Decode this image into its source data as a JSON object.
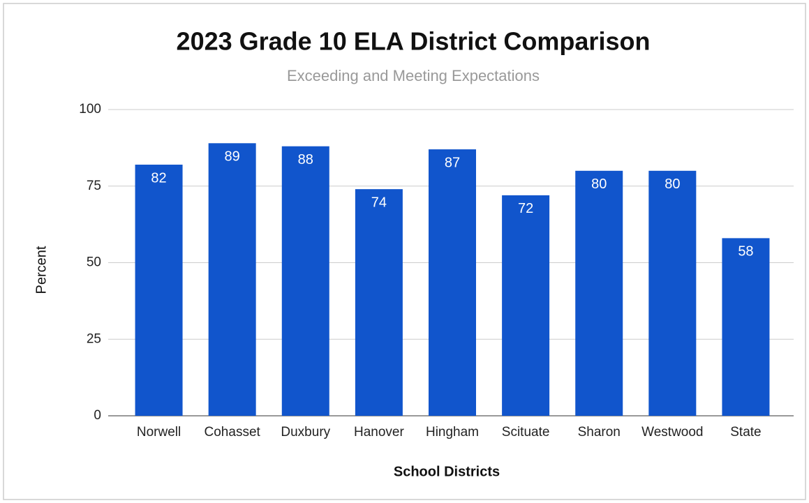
{
  "chart_data": {
    "type": "bar",
    "title": "2023 Grade 10 ELA District Comparison",
    "subtitle": "Exceeding and Meeting Expectations",
    "x_label": "School Districts",
    "y_label": "Percent",
    "categories": [
      "Norwell",
      "Cohasset",
      "Duxbury",
      "Hanover",
      "Hingham",
      "Scituate",
      "Sharon",
      "Westwood",
      "State"
    ],
    "values": [
      82,
      89,
      88,
      74,
      87,
      72,
      80,
      80,
      58
    ],
    "color": "#1155cc",
    "ylim": [
      0,
      100
    ],
    "yticks": [
      0,
      25,
      50,
      75,
      100
    ],
    "grid": true
  }
}
